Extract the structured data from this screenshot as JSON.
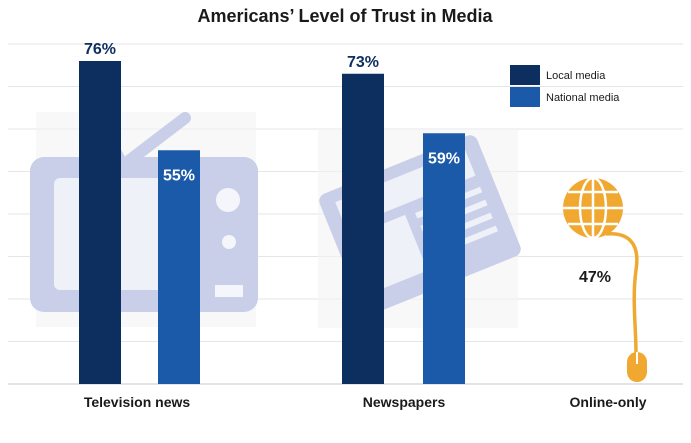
{
  "chart_data": {
    "type": "bar",
    "title": "Americans’ Level of Trust in Media",
    "categories": [
      "Television news",
      "Newspapers",
      "Online-only"
    ],
    "series": [
      {
        "name": "Local media",
        "color": "#0d2f5f",
        "values": [
          76,
          73,
          null
        ]
      },
      {
        "name": "National media",
        "color": "#1a5aa8",
        "values": [
          55,
          59,
          null
        ]
      }
    ],
    "annotations": [
      {
        "category": "Online-only",
        "value": 47,
        "label": "47%",
        "icon": "globe-mouse-icon",
        "color": "#f0a830"
      }
    ],
    "value_labels": [
      [
        "76%",
        "55%"
      ],
      [
        "73%",
        "59%"
      ],
      [
        "47%"
      ]
    ],
    "ylim": [
      0,
      80
    ],
    "grid": true,
    "legend_position": "top-right",
    "background_icons": [
      "television-icon",
      "newspaper-icon"
    ],
    "icon_color": "#c9cfe8"
  }
}
